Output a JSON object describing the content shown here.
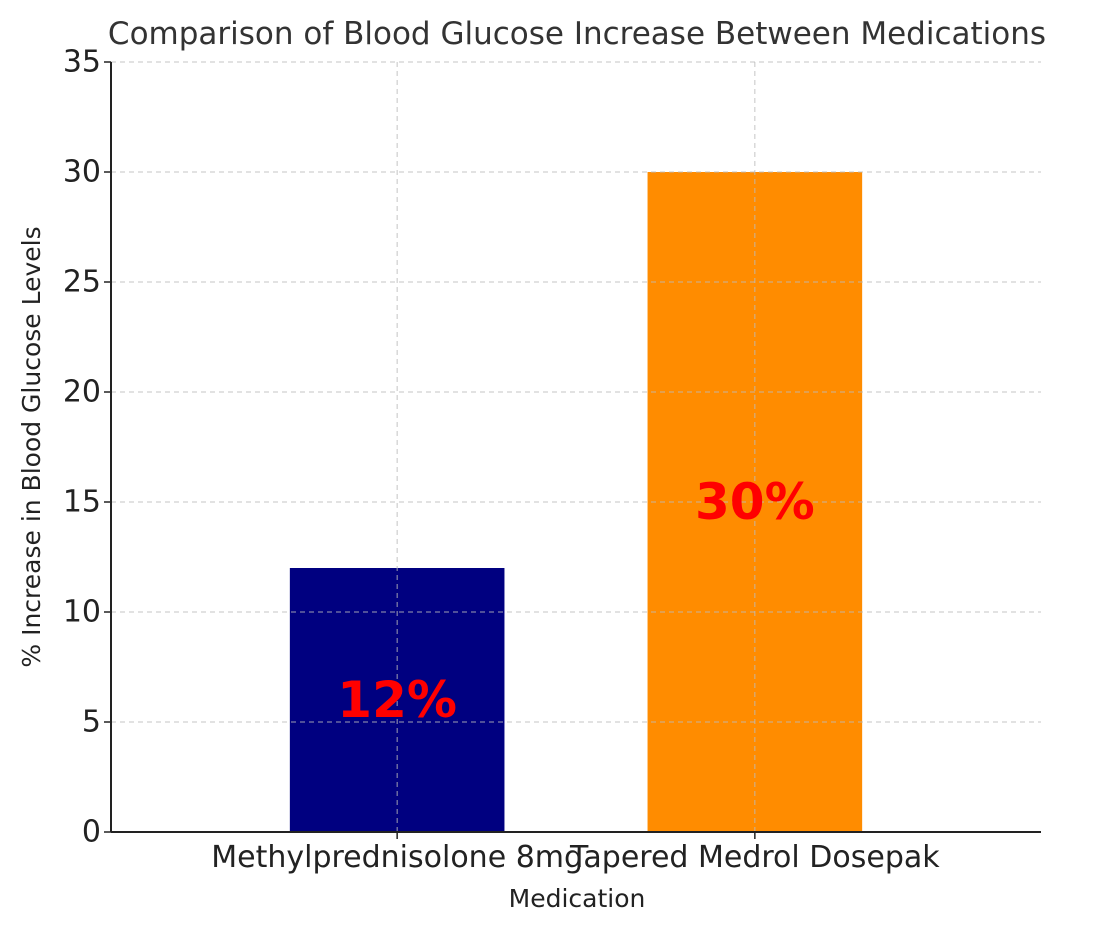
{
  "chart_data": {
    "type": "bar",
    "title": "Comparison of Blood Glucose Increase Between Medications",
    "xlabel": "Medication",
    "ylabel": "% Increase in Blood Glucose Levels",
    "categories": [
      "Methylprednisolone 8mg",
      "Tapered Medrol Dosepak"
    ],
    "values": [
      12,
      30
    ],
    "bar_colors": [
      "#000080",
      "#ff8c00"
    ],
    "data_labels": [
      "12%",
      "30%"
    ],
    "data_label_color": "#ff0000",
    "ylim": [
      0,
      35
    ],
    "yticks": [
      0,
      5,
      10,
      15,
      20,
      25,
      30,
      35
    ],
    "grid": true,
    "legend": "none"
  }
}
